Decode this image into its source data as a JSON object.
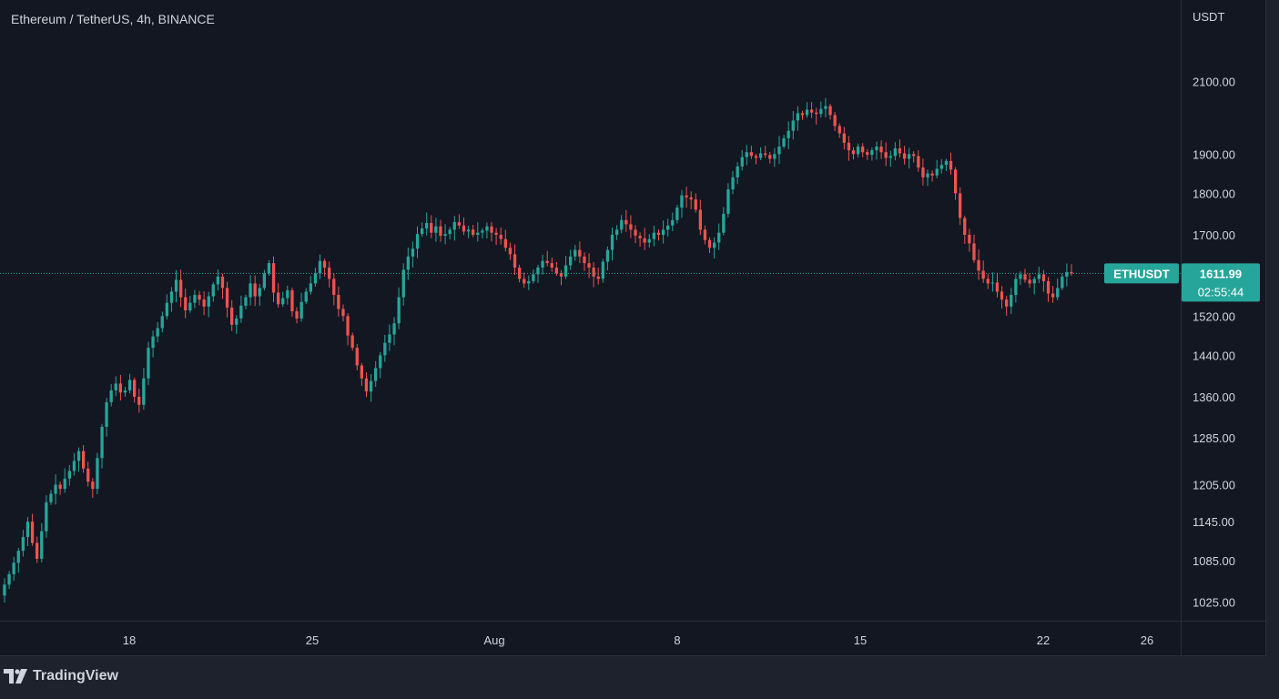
{
  "header": {
    "symbol_title": "Ethereum / TetherUS, 4h, BINANCE"
  },
  "price_axis": {
    "currency": "USDT"
  },
  "symbol_tag": {
    "label": "ETHUSDT",
    "price": "1611.99",
    "countdown": "02:55:44"
  },
  "branding": {
    "logo_text": "TradingView",
    "logo_icon": "tradingview-logo-icon"
  },
  "colors": {
    "background": "#131722",
    "panel": "#1e222d",
    "up": "#26a69a",
    "down": "#ef5350",
    "tag": "#26a69a",
    "text": "#d1d4dc"
  },
  "chart_data": {
    "type": "candlestick",
    "title": "Ethereum / TetherUS, 4h, BINANCE",
    "ylabel": "USDT",
    "y_scale": "log",
    "y_ticks": [
      "2100.00",
      "1900.00",
      "1800.00",
      "1700.00",
      "1520.00",
      "1440.00",
      "1360.00",
      "1285.00",
      "1205.00",
      "1145.00",
      "1085.00",
      "1025.00"
    ],
    "x_ticks": [
      "18",
      "25",
      "Aug",
      "8",
      "15",
      "22",
      "26"
    ],
    "last_price": 1611.99,
    "grid": false,
    "closes": [
      1050,
      1065,
      1082,
      1100,
      1121,
      1145,
      1112,
      1088,
      1130,
      1176,
      1190,
      1205,
      1198,
      1215,
      1228,
      1245,
      1262,
      1232,
      1210,
      1198,
      1250,
      1305,
      1350,
      1372,
      1385,
      1368,
      1372,
      1392,
      1360,
      1345,
      1395,
      1455,
      1478,
      1495,
      1520,
      1548,
      1572,
      1598,
      1560,
      1532,
      1548,
      1565,
      1555,
      1540,
      1562,
      1588,
      1605,
      1580,
      1538,
      1502,
      1515,
      1542,
      1560,
      1590,
      1562,
      1580,
      1612,
      1635,
      1570,
      1545,
      1558,
      1575,
      1530,
      1515,
      1550,
      1572,
      1590,
      1612,
      1640,
      1625,
      1600,
      1565,
      1535,
      1520,
      1480,
      1455,
      1420,
      1395,
      1370,
      1390,
      1415,
      1440,
      1465,
      1482,
      1505,
      1560,
      1620,
      1650,
      1668,
      1702,
      1715,
      1728,
      1705,
      1720,
      1698,
      1702,
      1712,
      1730,
      1722,
      1708,
      1712,
      1700,
      1705,
      1710,
      1720,
      1705,
      1700,
      1690,
      1670,
      1655,
      1625,
      1600,
      1590,
      1595,
      1610,
      1625,
      1640,
      1635,
      1625,
      1612,
      1605,
      1630,
      1650,
      1665,
      1650,
      1635,
      1625,
      1605,
      1600,
      1638,
      1665,
      1700,
      1712,
      1735,
      1725,
      1712,
      1698,
      1692,
      1682,
      1690,
      1705,
      1700,
      1712,
      1722,
      1735,
      1765,
      1795,
      1790,
      1785,
      1760,
      1712,
      1688,
      1670,
      1682,
      1705,
      1750,
      1810,
      1840,
      1868,
      1892,
      1905,
      1895,
      1890,
      1902,
      1898,
      1888,
      1900,
      1920,
      1942,
      1962,
      1990,
      2010,
      2005,
      2020,
      2012,
      2008,
      2022,
      2030,
      2005,
      1975,
      1955,
      1930,
      1910,
      1900,
      1920,
      1905,
      1898,
      1910,
      1920,
      1905,
      1890,
      1895,
      1915,
      1902,
      1888,
      1900,
      1895,
      1865,
      1840,
      1850,
      1845,
      1862,
      1872,
      1882,
      1860,
      1800,
      1740,
      1700,
      1680,
      1642,
      1618,
      1600,
      1590,
      1592,
      1572,
      1555,
      1540,
      1565,
      1600,
      1610,
      1598,
      1590,
      1600,
      1610,
      1595,
      1568,
      1560,
      1580,
      1605,
      1615,
      1611.99
    ]
  }
}
